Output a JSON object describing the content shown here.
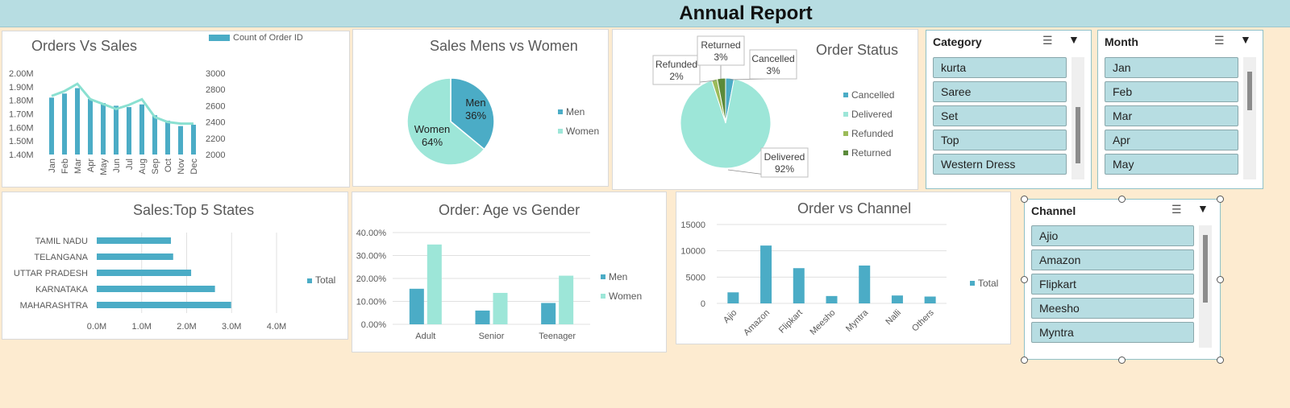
{
  "page": {
    "title": "Annual Report"
  },
  "colors": {
    "teal": "#4bacc6",
    "mint": "#9de6d8",
    "lime": "#9bbb59",
    "green": "#5b8a3a",
    "line": "#8ae0d1"
  },
  "chart_data": [
    {
      "id": "orders_vs_sales",
      "type": "bar",
      "title": "Orders Vs Sales",
      "categories": [
        "Jan",
        "Feb",
        "Mar",
        "Apr",
        "May",
        "Jun",
        "Jul",
        "Aug",
        "Sep",
        "Oct",
        "Nov",
        "Dec"
      ],
      "series": [
        {
          "name": "",
          "axis": "left",
          "values": [
            1.82,
            1.85,
            1.89,
            1.81,
            1.78,
            1.76,
            1.75,
            1.77,
            1.69,
            1.65,
            1.61,
            1.62
          ]
        },
        {
          "name": "Count of Order ID",
          "axis": "right",
          "kind": "line",
          "values": [
            2720,
            2780,
            2870,
            2680,
            2620,
            2560,
            2610,
            2680,
            2460,
            2400,
            2380,
            2380
          ]
        }
      ],
      "ylim_left": [
        1.4,
        2.0
      ],
      "ylim_right": [
        2000,
        3000
      ],
      "left_ticks": [
        "1.40M",
        "1.50M",
        "1.60M",
        "1.70M",
        "1.80M",
        "1.90M",
        "2.00M"
      ],
      "right_ticks": [
        "2000",
        "2200",
        "2400",
        "2600",
        "2800",
        "3000"
      ],
      "legend": "top-right"
    },
    {
      "id": "sales_gender",
      "type": "pie",
      "title": "Sales Mens vs Women",
      "labels": [
        "Men",
        "Women"
      ],
      "values": [
        36,
        64
      ],
      "data_labels": [
        "Men\n36%",
        "Women\n64%"
      ],
      "legend": "right"
    },
    {
      "id": "order_status",
      "type": "pie",
      "title": "Order Status",
      "labels": [
        "Cancelled",
        "Delivered",
        "Refunded",
        "Returned"
      ],
      "values": [
        3,
        92,
        2,
        3
      ],
      "callouts": [
        "Cancelled 3%",
        "Delivered 92%",
        "Refunded 2%",
        "Returned 3%"
      ],
      "legend": "right"
    },
    {
      "id": "top_states",
      "type": "bar",
      "orientation": "horizontal",
      "title": "Sales:Top 5 States",
      "categories": [
        "TAMIL NADU",
        "TELANGANA",
        "UTTAR PRADESH",
        "KARNATAKA",
        "MAHARASHTRA"
      ],
      "series": [
        {
          "name": "Total",
          "values": [
            1.65,
            1.7,
            2.1,
            2.63,
            2.99
          ]
        }
      ],
      "xlim": [
        0,
        4
      ],
      "x_ticks": [
        "0.0M",
        "1.0M",
        "2.0M",
        "3.0M",
        "4.0M"
      ],
      "legend": "right"
    },
    {
      "id": "age_gender",
      "type": "bar",
      "title": "Order: Age vs Gender",
      "categories": [
        "Adult",
        "Senior",
        "Teenager"
      ],
      "series": [
        {
          "name": "Men",
          "values": [
            15.5,
            6.0,
            9.3
          ]
        },
        {
          "name": "Women",
          "values": [
            34.8,
            13.7,
            21.2
          ]
        }
      ],
      "ylim": [
        0,
        40
      ],
      "y_ticks": [
        "0.00%",
        "10.00%",
        "20.00%",
        "30.00%",
        "40.00%"
      ],
      "legend": "right"
    },
    {
      "id": "order_channel",
      "type": "bar",
      "title": "Order vs Channel",
      "categories": [
        "Ajio",
        "Amazon",
        "Flipkart",
        "Meesho",
        "Myntra",
        "Nalli",
        "Others"
      ],
      "series": [
        {
          "name": "Total",
          "values": [
            2100,
            11000,
            6700,
            1400,
            7200,
            1500,
            1300
          ]
        }
      ],
      "ylim": [
        0,
        15000
      ],
      "y_ticks": [
        "0",
        "5000",
        "10000",
        "15000"
      ],
      "legend": "right"
    }
  ],
  "slicers": {
    "category": {
      "title": "Category",
      "items": [
        "kurta",
        "Saree",
        "Set",
        "Top",
        "Western Dress"
      ]
    },
    "month": {
      "title": "Month",
      "items": [
        "Jan",
        "Feb",
        "Mar",
        "Apr",
        "May"
      ]
    },
    "channel": {
      "title": "Channel",
      "items": [
        "Ajio",
        "Amazon",
        "Flipkart",
        "Meesho",
        "Myntra"
      ]
    }
  },
  "icons": {
    "multiselect": "multiselect-icon",
    "clear_filter": "clear-filter-icon"
  }
}
